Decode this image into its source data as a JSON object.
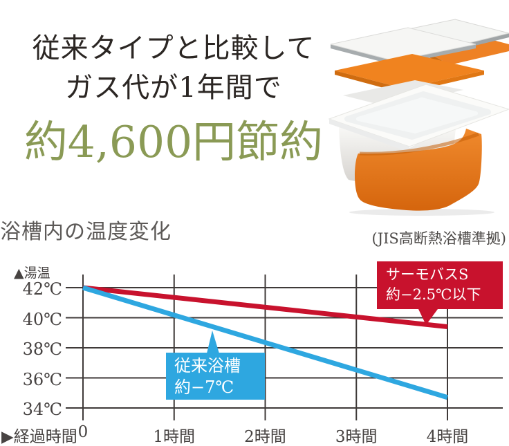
{
  "header": {
    "line1": "従来タイプと比較して",
    "line2": "ガス代が1年間で",
    "highlight": "約4,600円節約",
    "highlight_color": "#8a9a55"
  },
  "section": {
    "title": "浴槽内の温度変化",
    "note": "(JIS高断熱浴槽準拠)"
  },
  "product_illustration": {
    "description": "断熱構造の分解図（風呂ふた・保温シート・浴槽・断熱材）",
    "orange": "#e87c1e",
    "white": "#f6f6f4",
    "edge_gray": "#a2a7a9"
  },
  "chart_data": {
    "type": "line",
    "title": "浴槽内の温度変化",
    "y_axis_label": "▲湯温",
    "x_axis_label_prefix": "▶経過時間",
    "xlabel": "経過時間",
    "ylabel": "湯温(℃)",
    "xticks": [
      0,
      1,
      2,
      3,
      4
    ],
    "xtick_labels": [
      "0",
      "1時間",
      "2時間",
      "3時間",
      "4時間"
    ],
    "yticks": [
      42,
      40,
      38,
      36,
      34
    ],
    "ytick_labels": [
      "42℃",
      "40℃",
      "38℃",
      "36℃",
      "34℃"
    ],
    "ylim": [
      34,
      42
    ],
    "grid": true,
    "grid_color": "#3f3a39",
    "series": [
      {
        "name": "サーモバスS",
        "color": "#c8122d",
        "points": [
          [
            0,
            42
          ],
          [
            4,
            39.4
          ]
        ],
        "label_line1": "サーモバスS",
        "label_line2": "約−2.5℃以下"
      },
      {
        "name": "従来浴槽",
        "color": "#2ea7e0",
        "points": [
          [
            0,
            42
          ],
          [
            4,
            34.7
          ]
        ],
        "label_line1": "従来浴槽",
        "label_line2": "約−7℃"
      }
    ]
  }
}
